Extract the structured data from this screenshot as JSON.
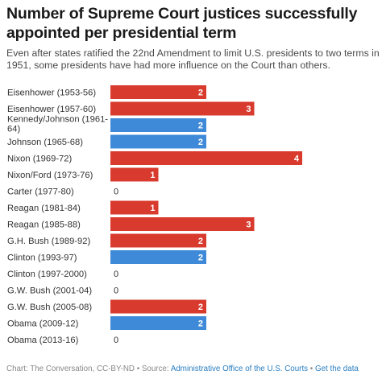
{
  "header": {
    "title": "Number of Supreme Court justices successfully appointed per presidential term",
    "subtitle": "Even after states ratified the 22nd Amendment to limit U.S. presidents to two terms in 1951, some presidents have had more influence on the Court than others."
  },
  "footer": {
    "credit": "Chart: The Conversation, CC-BY-ND",
    "separator1": " • Source: ",
    "source_link": "Administrative Office of the U.S. Courts",
    "separator2": " • ",
    "data_link": "Get the data"
  },
  "colors": {
    "republican": "#d93a2e",
    "democrat": "#3f8ad8",
    "bar_label": "#ffffff",
    "zero_label": "#333333",
    "category_label": "#333333"
  },
  "chart_data": {
    "type": "bar",
    "orientation": "horizontal",
    "title": "Number of Supreme Court justices successfully appointed per presidential term",
    "xlim": [
      0,
      4
    ],
    "categories": [
      {
        "lines": [
          "Eisenhower (1953-56)"
        ],
        "value": 2,
        "party": "republican"
      },
      {
        "lines": [
          "Eisenhower (1957-60)"
        ],
        "value": 3,
        "party": "republican"
      },
      {
        "lines": [
          "Kennedy/Johnson (1961-",
          "64)"
        ],
        "value": 2,
        "party": "democrat"
      },
      {
        "lines": [
          "Johnson (1965-68)"
        ],
        "value": 2,
        "party": "democrat"
      },
      {
        "lines": [
          "Nixon (1969-72)"
        ],
        "value": 4,
        "party": "republican"
      },
      {
        "lines": [
          "Nixon/Ford (1973-76)"
        ],
        "value": 1,
        "party": "republican"
      },
      {
        "lines": [
          "Carter (1977-80)"
        ],
        "value": 0,
        "party": "democrat"
      },
      {
        "lines": [
          "Reagan (1981-84)"
        ],
        "value": 1,
        "party": "republican"
      },
      {
        "lines": [
          "Reagan (1985-88)"
        ],
        "value": 3,
        "party": "republican"
      },
      {
        "lines": [
          "G.H. Bush (1989-92)"
        ],
        "value": 2,
        "party": "republican"
      },
      {
        "lines": [
          "Clinton (1993-97)"
        ],
        "value": 2,
        "party": "democrat"
      },
      {
        "lines": [
          "Clinton (1997-2000)"
        ],
        "value": 0,
        "party": "democrat"
      },
      {
        "lines": [
          "G.W. Bush (2001-04)"
        ],
        "value": 0,
        "party": "republican"
      },
      {
        "lines": [
          "G.W. Bush (2005-08)"
        ],
        "value": 2,
        "party": "republican"
      },
      {
        "lines": [
          "Obama (2009-12)"
        ],
        "value": 2,
        "party": "democrat"
      },
      {
        "lines": [
          "Obama (2013-16)"
        ],
        "value": 0,
        "party": "democrat"
      }
    ]
  }
}
